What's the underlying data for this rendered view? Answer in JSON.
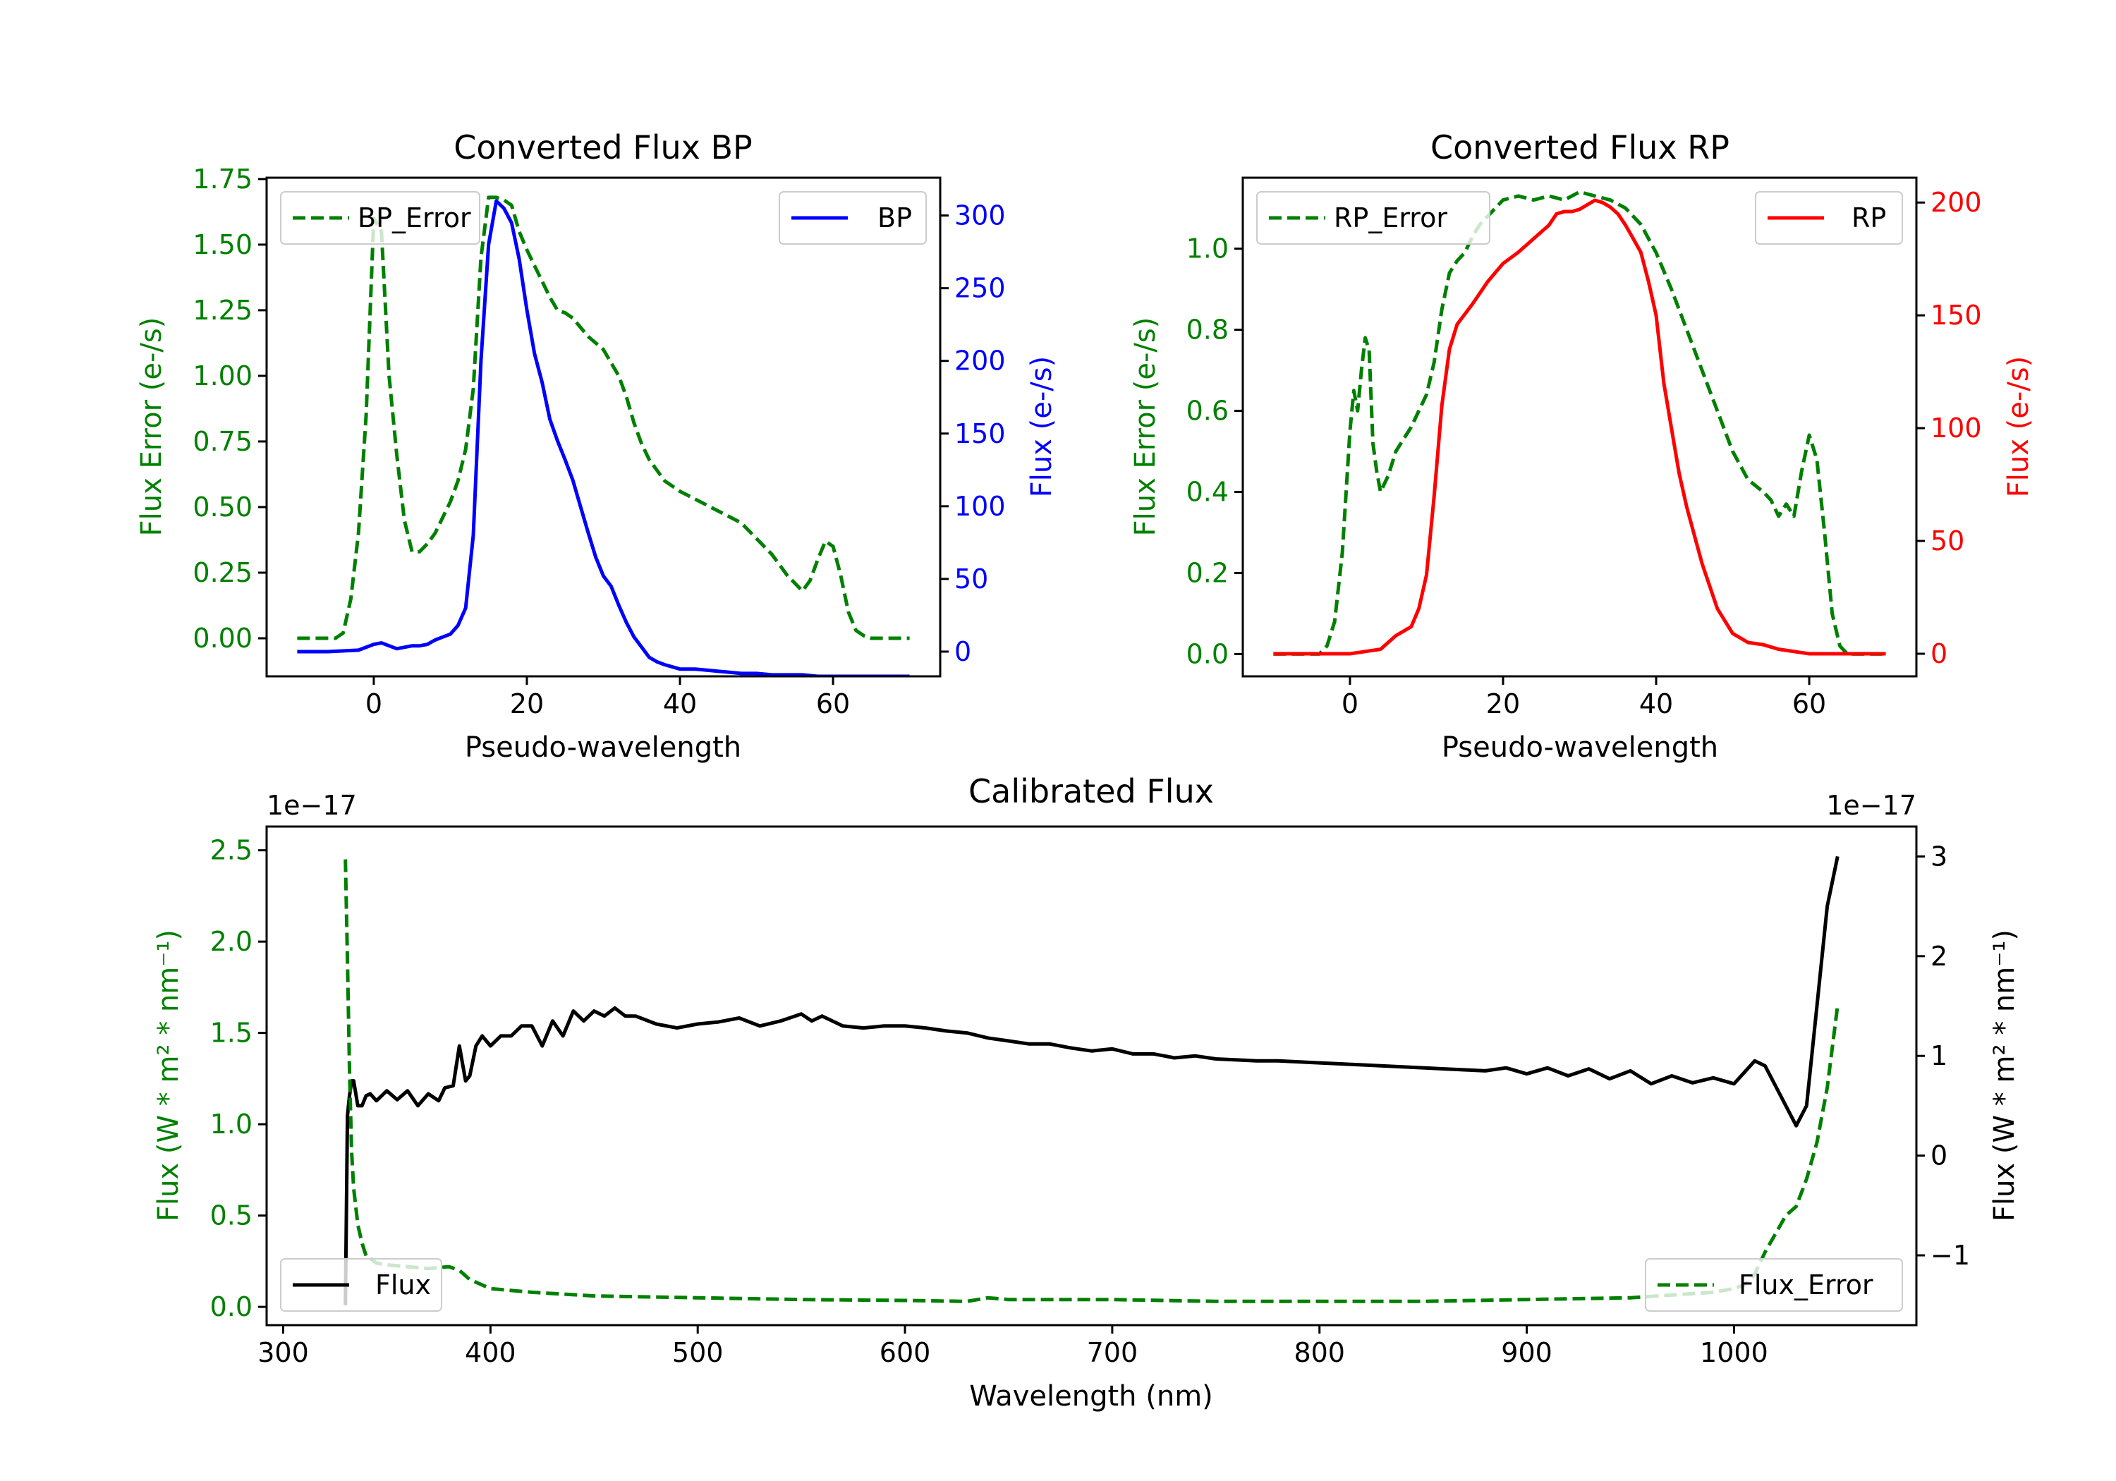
{
  "chart_data": [
    {
      "id": "bp",
      "type": "line",
      "title": "Converted Flux BP",
      "xlabel": "Pseudo-wavelength",
      "ylabel_left": "Flux Error (e-/s)",
      "ylabel_right": "Flux (e-/s)",
      "xlim": [
        -14,
        74
      ],
      "ylim_left": [
        -0.145,
        1.755
      ],
      "ylim_right": [
        -17,
        326
      ],
      "xticks": [
        0,
        20,
        40,
        60
      ],
      "xtick_labels": [
        "0",
        "20",
        "40",
        "60"
      ],
      "yticks_left": [
        0,
        0.25,
        0.5,
        0.75,
        1.0,
        1.25,
        1.5,
        1.75
      ],
      "ytick_labels_left": [
        "0.00",
        "0.25",
        "0.50",
        "0.75",
        "1.00",
        "1.25",
        "1.50",
        "1.75"
      ],
      "yticks_right": [
        0,
        50,
        100,
        150,
        200,
        250,
        300
      ],
      "ytick_labels_right": [
        "0",
        "50",
        "100",
        "150",
        "200",
        "250",
        "300"
      ],
      "colors": {
        "left_axis": "#008000",
        "right_axis": "#0000ff",
        "error": "#008000",
        "flux": "#0000ff"
      },
      "legend_left": {
        "label": "BP_Error",
        "position": "top-left"
      },
      "legend_right": {
        "label": "BP",
        "position": "top-right"
      },
      "series": [
        {
          "name": "BP_Error",
          "axis": "left",
          "style": "dashed",
          "color": "#008000",
          "x": [
            -10,
            -5,
            -4,
            -3,
            -2,
            -1,
            0,
            1,
            2,
            3,
            4,
            5,
            6,
            7,
            8,
            9,
            10,
            11,
            12,
            13,
            14,
            15,
            16,
            17,
            18,
            19,
            20,
            21,
            22,
            23,
            24,
            25,
            26,
            28,
            30,
            32,
            33,
            34,
            35,
            36,
            38,
            40,
            42,
            44,
            46,
            48,
            50,
            52,
            54,
            56,
            57,
            58,
            59,
            60,
            61,
            62,
            63,
            64,
            65,
            66,
            68,
            70
          ],
          "y": [
            0,
            0,
            0.02,
            0.15,
            0.4,
            0.85,
            1.6,
            1.55,
            1.0,
            0.7,
            0.45,
            0.33,
            0.33,
            0.36,
            0.4,
            0.46,
            0.52,
            0.6,
            0.72,
            0.95,
            1.45,
            1.68,
            1.68,
            1.67,
            1.65,
            1.55,
            1.48,
            1.42,
            1.36,
            1.3,
            1.25,
            1.24,
            1.22,
            1.15,
            1.1,
            1.0,
            0.92,
            0.82,
            0.74,
            0.68,
            0.6,
            0.56,
            0.53,
            0.5,
            0.47,
            0.44,
            0.38,
            0.32,
            0.24,
            0.18,
            0.22,
            0.3,
            0.37,
            0.35,
            0.24,
            0.1,
            0.03,
            0.01,
            0,
            0,
            0,
            0
          ]
        },
        {
          "name": "BP",
          "axis": "right",
          "style": "solid",
          "color": "#0000ff",
          "x": [
            -10,
            -6,
            -2,
            0,
            1,
            2,
            3,
            4,
            5,
            6,
            7,
            8,
            9,
            10,
            11,
            12,
            13,
            14,
            15,
            16,
            17,
            18,
            19,
            20,
            21,
            22,
            23,
            24,
            25,
            26,
            27,
            28,
            29,
            30,
            31,
            32,
            33,
            34,
            35,
            36,
            37,
            38,
            40,
            42,
            44,
            46,
            48,
            50,
            52,
            54,
            56,
            58,
            60,
            62,
            64,
            66,
            68,
            70
          ],
          "y": [
            0,
            0,
            1,
            5,
            6,
            4,
            2,
            3,
            4,
            4,
            5,
            8,
            10,
            12,
            18,
            30,
            80,
            200,
            280,
            310,
            305,
            295,
            270,
            235,
            205,
            185,
            160,
            145,
            132,
            118,
            100,
            82,
            65,
            52,
            45,
            32,
            20,
            10,
            3,
            -4,
            -7,
            -9,
            -12,
            -12,
            -13,
            -14,
            -15,
            -15,
            -16,
            -16,
            -16,
            -17,
            -17,
            -17,
            -17,
            -17,
            -17,
            -17
          ]
        }
      ]
    },
    {
      "id": "rp",
      "type": "line",
      "title": "Converted Flux RP",
      "xlabel": "Pseudo-wavelength",
      "ylabel_left": "Flux Error (e-/s)",
      "ylabel_right": "Flux (e-/s)",
      "xlim": [
        -14,
        74
      ],
      "ylim_left": [
        -0.055,
        1.175
      ],
      "ylim_right": [
        -10,
        211
      ],
      "xticks": [
        0,
        20,
        40,
        60
      ],
      "xtick_labels": [
        "0",
        "20",
        "40",
        "60"
      ],
      "yticks_left": [
        0,
        0.2,
        0.4,
        0.6,
        0.8,
        1.0
      ],
      "ytick_labels_left": [
        "0.0",
        "0.2",
        "0.4",
        "0.6",
        "0.8",
        "1.0"
      ],
      "yticks_right": [
        0,
        50,
        100,
        150,
        200
      ],
      "ytick_labels_right": [
        "0",
        "50",
        "100",
        "150",
        "200"
      ],
      "colors": {
        "left_axis": "#008000",
        "right_axis": "#ff0000",
        "error": "#008000",
        "flux": "#ff0000"
      },
      "legend_left": {
        "label": "RP_Error",
        "position": "top-left"
      },
      "legend_right": {
        "label": "RP",
        "position": "top-right"
      },
      "series": [
        {
          "name": "RP_Error",
          "axis": "left",
          "style": "dashed",
          "color": "#008000",
          "x": [
            -10,
            -4,
            -3,
            -2,
            -1,
            0,
            0.5,
            1,
            1.5,
            2,
            2.5,
            3,
            3.5,
            4,
            5,
            6,
            7,
            8,
            9,
            10,
            11,
            12,
            13,
            14,
            15,
            16,
            17,
            18,
            19,
            20,
            22,
            24,
            26,
            28,
            30,
            32,
            34,
            36,
            38,
            40,
            42,
            44,
            46,
            48,
            50,
            52,
            54,
            55,
            56,
            57,
            58,
            59,
            60,
            61,
            62,
            63,
            64,
            65,
            66,
            68,
            70
          ],
          "y": [
            0,
            0,
            0.02,
            0.08,
            0.25,
            0.55,
            0.65,
            0.6,
            0.7,
            0.78,
            0.75,
            0.52,
            0.45,
            0.4,
            0.44,
            0.5,
            0.53,
            0.56,
            0.6,
            0.64,
            0.72,
            0.85,
            0.94,
            0.97,
            0.99,
            1.03,
            1.06,
            1.08,
            1.1,
            1.12,
            1.13,
            1.12,
            1.13,
            1.12,
            1.14,
            1.13,
            1.12,
            1.1,
            1.06,
            0.99,
            0.9,
            0.8,
            0.7,
            0.6,
            0.5,
            0.43,
            0.4,
            0.38,
            0.34,
            0.37,
            0.34,
            0.45,
            0.54,
            0.48,
            0.3,
            0.1,
            0.02,
            0,
            0,
            0,
            0
          ]
        },
        {
          "name": "RP",
          "axis": "right",
          "style": "solid",
          "color": "#ff0000",
          "x": [
            -10,
            -4,
            0,
            2,
            4,
            6,
            8,
            9,
            10,
            11,
            12,
            13,
            14,
            16,
            18,
            20,
            22,
            24,
            26,
            27,
            28,
            29,
            30,
            31,
            32,
            33,
            34,
            35,
            36,
            37,
            38,
            39,
            40,
            41,
            42,
            43,
            44,
            46,
            48,
            50,
            52,
            54,
            56,
            58,
            60,
            62,
            64,
            66,
            68,
            70
          ],
          "y": [
            0,
            0,
            0,
            1,
            2,
            8,
            12,
            20,
            35,
            70,
            110,
            135,
            146,
            155,
            165,
            173,
            178,
            184,
            190,
            195,
            196,
            196,
            197,
            199,
            201,
            200,
            198,
            195,
            190,
            184,
            178,
            165,
            150,
            120,
            100,
            80,
            65,
            40,
            20,
            9,
            5,
            4,
            2,
            1,
            0,
            0,
            0,
            0,
            0,
            0
          ]
        }
      ]
    },
    {
      "id": "calibrated",
      "type": "line",
      "title": "Calibrated Flux",
      "xlabel": "Wavelength (nm)",
      "ylabel_left": "Flux (W * m² * nm⁻¹)",
      "ylabel_right": "Flux (W * m² * nm⁻¹)",
      "offset_left": "1e−17",
      "offset_right": "1e−17",
      "xlim": [
        292,
        1088
      ],
      "ylim_left": [
        -0.1,
        2.63
      ],
      "ylim_right": [
        -1.7,
        3.3
      ],
      "xticks": [
        300,
        400,
        500,
        600,
        700,
        800,
        900,
        1000
      ],
      "xtick_labels": [
        "300",
        "400",
        "500",
        "600",
        "700",
        "800",
        "900",
        "1000"
      ],
      "yticks_left": [
        0,
        0.5,
        1.0,
        1.5,
        2.0,
        2.5
      ],
      "ytick_labels_left": [
        "0.0",
        "0.5",
        "1.0",
        "1.5",
        "2.0",
        "2.5"
      ],
      "yticks_right": [
        -1,
        0,
        1,
        2,
        3
      ],
      "ytick_labels_right": [
        "−1",
        "0",
        "1",
        "2",
        "3"
      ],
      "colors": {
        "left_axis": "#008000",
        "right_axis": "#000000",
        "error": "#008000",
        "flux": "#000000"
      },
      "legend_left": {
        "label": "Flux",
        "position": "bottom-left"
      },
      "legend_right": {
        "label": "Flux_Error",
        "position": "bottom-right"
      },
      "series": [
        {
          "name": "Flux",
          "axis": "right",
          "style": "solid",
          "color": "#000000",
          "x": [
            330,
            331,
            332,
            333,
            334,
            336,
            338,
            340,
            342,
            345,
            350,
            355,
            360,
            365,
            370,
            375,
            378,
            382,
            385,
            388,
            390,
            393,
            396,
            400,
            405,
            410,
            415,
            420,
            425,
            430,
            435,
            440,
            445,
            450,
            455,
            460,
            465,
            470,
            480,
            490,
            500,
            510,
            520,
            530,
            540,
            550,
            555,
            560,
            570,
            580,
            590,
            600,
            610,
            620,
            630,
            640,
            650,
            660,
            670,
            680,
            690,
            700,
            710,
            720,
            730,
            740,
            750,
            760,
            770,
            780,
            800,
            820,
            840,
            860,
            880,
            890,
            900,
            910,
            920,
            930,
            940,
            950,
            960,
            970,
            980,
            990,
            1000,
            1010,
            1015,
            1020,
            1025,
            1030,
            1035,
            1040,
            1045,
            1050
          ],
          "y": [
            -1.5,
            0.4,
            0.6,
            0.75,
            0.75,
            0.5,
            0.5,
            0.6,
            0.62,
            0.55,
            0.65,
            0.56,
            0.65,
            0.5,
            0.62,
            0.55,
            0.68,
            0.7,
            1.1,
            0.75,
            0.8,
            1.1,
            1.2,
            1.1,
            1.2,
            1.2,
            1.3,
            1.3,
            1.1,
            1.35,
            1.2,
            1.45,
            1.35,
            1.45,
            1.4,
            1.48,
            1.4,
            1.4,
            1.32,
            1.28,
            1.32,
            1.34,
            1.38,
            1.3,
            1.35,
            1.42,
            1.35,
            1.4,
            1.3,
            1.28,
            1.3,
            1.3,
            1.28,
            1.25,
            1.23,
            1.18,
            1.15,
            1.12,
            1.12,
            1.08,
            1.05,
            1.07,
            1.02,
            1.02,
            0.98,
            1.0,
            0.97,
            0.96,
            0.95,
            0.95,
            0.93,
            0.91,
            0.89,
            0.87,
            0.85,
            0.88,
            0.82,
            0.88,
            0.8,
            0.87,
            0.77,
            0.85,
            0.72,
            0.8,
            0.73,
            0.78,
            0.72,
            0.95,
            0.9,
            0.7,
            0.5,
            0.3,
            0.5,
            1.5,
            2.5,
            3.0
          ]
        },
        {
          "name": "Flux_Error",
          "axis": "left",
          "style": "dashed",
          "color": "#008000",
          "x": [
            330,
            331,
            332,
            333,
            334,
            336,
            338,
            340,
            345,
            350,
            360,
            370,
            380,
            385,
            390,
            400,
            420,
            450,
            500,
            550,
            600,
            630,
            640,
            650,
            700,
            750,
            800,
            850,
            900,
            950,
            990,
            1000,
            1005,
            1010,
            1015,
            1020,
            1025,
            1030,
            1035,
            1040,
            1045,
            1050
          ],
          "y": [
            2.45,
            1.9,
            1.3,
            0.85,
            0.65,
            0.45,
            0.35,
            0.28,
            0.24,
            0.23,
            0.22,
            0.21,
            0.22,
            0.2,
            0.15,
            0.1,
            0.08,
            0.06,
            0.05,
            0.04,
            0.035,
            0.03,
            0.05,
            0.04,
            0.04,
            0.03,
            0.03,
            0.03,
            0.04,
            0.05,
            0.08,
            0.1,
            0.12,
            0.18,
            0.3,
            0.4,
            0.5,
            0.55,
            0.7,
            0.9,
            1.2,
            1.65
          ]
        }
      ]
    }
  ]
}
